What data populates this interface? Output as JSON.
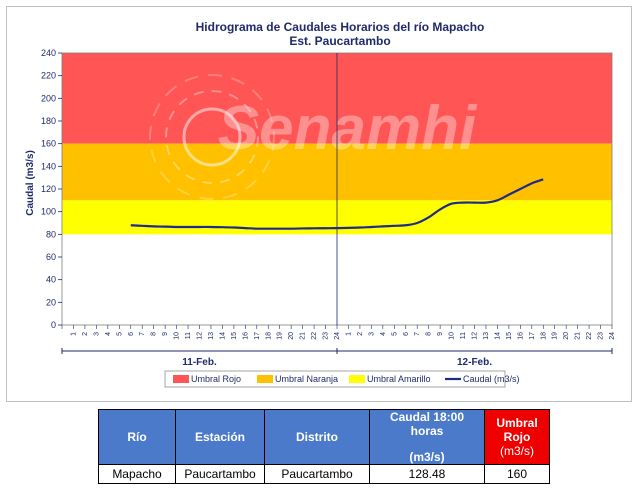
{
  "chart_data": {
    "type": "line",
    "title": "Hidrograma de Caudales Horarios del río Mapacho",
    "subtitle": "Est. Paucartambo",
    "ylabel": "Caudal  (m3/s)",
    "xlabel": "",
    "ylim": [
      0,
      240
    ],
    "yticks": [
      0,
      20,
      40,
      60,
      80,
      100,
      120,
      140,
      160,
      180,
      200,
      220,
      240
    ],
    "x_tick_labels": [
      "1",
      "2",
      "3",
      "4",
      "5",
      "6",
      "7",
      "8",
      "9",
      "10",
      "11",
      "12",
      "13",
      "14",
      "15",
      "16",
      "17",
      "18",
      "19",
      "20",
      "21",
      "22",
      "23",
      "24",
      "1",
      "2",
      "3",
      "4",
      "5",
      "6",
      "7",
      "8",
      "9",
      "10",
      "11",
      "12",
      "13",
      "14",
      "15",
      "16",
      "17",
      "18",
      "19",
      "20",
      "21",
      "22",
      "23",
      "24"
    ],
    "day_labels": [
      "11-Feb.",
      "12-Feb."
    ],
    "bands": [
      {
        "name": "Umbral Rojo",
        "from": 160,
        "to": 240,
        "color": "#ff5555"
      },
      {
        "name": "Umbral Naranja",
        "from": 110,
        "to": 160,
        "color": "#ffc000"
      },
      {
        "name": "Umbral Amarillo",
        "from": 80,
        "to": 110,
        "color": "#ffff00"
      }
    ],
    "series": [
      {
        "name": "Caudal (m3/s)",
        "color": "#1f2a8a",
        "x": [
          6,
          7,
          8,
          9,
          10,
          11,
          12,
          13,
          14,
          15,
          16,
          17,
          18,
          19,
          20,
          21,
          22,
          23,
          24,
          25,
          26,
          27,
          28,
          29,
          30,
          31,
          32,
          33,
          34,
          35,
          36,
          37,
          38,
          39,
          40,
          41,
          42
        ],
        "values": [
          88,
          87.5,
          87,
          86.8,
          86.5,
          86.5,
          86.5,
          86.5,
          86.3,
          86,
          85.5,
          85,
          85,
          85,
          85,
          85.2,
          85.3,
          85.4,
          85.5,
          85.7,
          86,
          86.5,
          87,
          87.5,
          88,
          90,
          95,
          102,
          107,
          108,
          108,
          108,
          110,
          115,
          120,
          125,
          128.48
        ]
      }
    ],
    "grid": false,
    "legend_position": "bottom"
  },
  "watermark": "Senamhi",
  "table": {
    "headers": {
      "rio": "Río",
      "estacion": "Estación",
      "distrito": "Distrito",
      "caudal_line1": "Caudal 18:00 horas",
      "caudal_line2": "(m3/s)",
      "umbral_line1": "Umbral",
      "umbral_line2": "Rojo",
      "umbral_line3": "(m3/s)"
    },
    "row": {
      "rio": "Mapacho",
      "estacion": "Paucartambo",
      "distrito": "Paucartambo",
      "caudal": "128.48",
      "umbral": "160"
    }
  }
}
